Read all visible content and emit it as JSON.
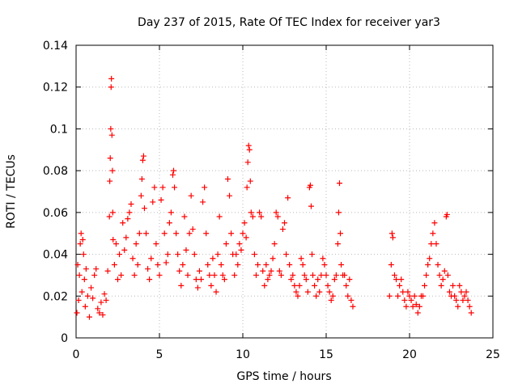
{
  "chart_data": {
    "type": "scatter",
    "title": "Day 237 of 2015, Rate Of TEC Index for receiver yar3",
    "xlabel": "GPS time / hours",
    "ylabel": "ROTI / TECUs",
    "xlim": [
      0,
      25
    ],
    "ylim": [
      0,
      0.14
    ],
    "x_ticks": [
      0,
      5,
      10,
      15,
      20,
      25
    ],
    "y_ticks": [
      0,
      0.02,
      0.04,
      0.06,
      0.08,
      0.1,
      0.12,
      0.14
    ],
    "x_tick_labels": [
      "0",
      "5",
      "10",
      "15",
      "20",
      "25"
    ],
    "y_tick_labels": [
      "0",
      "0.02",
      "0.04",
      "0.06",
      "0.08",
      "0.1",
      "0.12",
      "0.14"
    ],
    "grid": true,
    "marker": "+",
    "series": [
      {
        "name": "ROTI",
        "color": "#ff0000",
        "points": [
          [
            0.05,
            0.012
          ],
          [
            0.1,
            0.035
          ],
          [
            0.15,
            0.018
          ],
          [
            0.2,
            0.03
          ],
          [
            0.25,
            0.045
          ],
          [
            0.3,
            0.05
          ],
          [
            0.35,
            0.022
          ],
          [
            0.4,
            0.047
          ],
          [
            0.45,
            0.04
          ],
          [
            0.5,
            0.028
          ],
          [
            0.55,
            0.015
          ],
          [
            0.6,
            0.033
          ],
          [
            0.7,
            0.02
          ],
          [
            0.8,
            0.01
          ],
          [
            0.9,
            0.024
          ],
          [
            1.0,
            0.019
          ],
          [
            1.1,
            0.03
          ],
          [
            1.2,
            0.033
          ],
          [
            1.3,
            0.014
          ],
          [
            1.4,
            0.012
          ],
          [
            1.5,
            0.017
          ],
          [
            1.6,
            0.011
          ],
          [
            1.7,
            0.021
          ],
          [
            1.8,
            0.018
          ],
          [
            1.9,
            0.032
          ],
          [
            2.0,
            0.058
          ],
          [
            2.02,
            0.075
          ],
          [
            2.05,
            0.086
          ],
          [
            2.08,
            0.1
          ],
          [
            2.1,
            0.12
          ],
          [
            2.12,
            0.124
          ],
          [
            2.15,
            0.097
          ],
          [
            2.18,
            0.08
          ],
          [
            2.2,
            0.06
          ],
          [
            2.22,
            0.047
          ],
          [
            2.3,
            0.035
          ],
          [
            2.4,
            0.045
          ],
          [
            2.5,
            0.028
          ],
          [
            2.6,
            0.04
          ],
          [
            2.7,
            0.03
          ],
          [
            2.8,
            0.055
          ],
          [
            2.9,
            0.042
          ],
          [
            3.0,
            0.048
          ],
          [
            3.1,
            0.057
          ],
          [
            3.2,
            0.06
          ],
          [
            3.3,
            0.064
          ],
          [
            3.4,
            0.038
          ],
          [
            3.5,
            0.03
          ],
          [
            3.6,
            0.045
          ],
          [
            3.7,
            0.035
          ],
          [
            3.8,
            0.05
          ],
          [
            3.9,
            0.068
          ],
          [
            3.95,
            0.076
          ],
          [
            4.0,
            0.085
          ],
          [
            4.05,
            0.087
          ],
          [
            4.1,
            0.062
          ],
          [
            4.2,
            0.05
          ],
          [
            4.3,
            0.033
          ],
          [
            4.4,
            0.028
          ],
          [
            4.5,
            0.038
          ],
          [
            4.6,
            0.065
          ],
          [
            4.7,
            0.072
          ],
          [
            4.8,
            0.045
          ],
          [
            4.9,
            0.035
          ],
          [
            5.0,
            0.03
          ],
          [
            5.1,
            0.066
          ],
          [
            5.2,
            0.072
          ],
          [
            5.3,
            0.05
          ],
          [
            5.4,
            0.036
          ],
          [
            5.5,
            0.04
          ],
          [
            5.6,
            0.055
          ],
          [
            5.7,
            0.06
          ],
          [
            5.8,
            0.078
          ],
          [
            5.85,
            0.08
          ],
          [
            5.9,
            0.072
          ],
          [
            6.0,
            0.05
          ],
          [
            6.1,
            0.04
          ],
          [
            6.2,
            0.032
          ],
          [
            6.3,
            0.025
          ],
          [
            6.4,
            0.035
          ],
          [
            6.5,
            0.058
          ],
          [
            6.6,
            0.042
          ],
          [
            6.7,
            0.03
          ],
          [
            6.8,
            0.05
          ],
          [
            6.9,
            0.068
          ],
          [
            7.0,
            0.052
          ],
          [
            7.1,
            0.04
          ],
          [
            7.2,
            0.028
          ],
          [
            7.3,
            0.024
          ],
          [
            7.4,
            0.032
          ],
          [
            7.5,
            0.028
          ],
          [
            7.6,
            0.065
          ],
          [
            7.7,
            0.072
          ],
          [
            7.8,
            0.05
          ],
          [
            7.9,
            0.035
          ],
          [
            8.0,
            0.03
          ],
          [
            8.1,
            0.025
          ],
          [
            8.2,
            0.038
          ],
          [
            8.3,
            0.03
          ],
          [
            8.4,
            0.022
          ],
          [
            8.5,
            0.04
          ],
          [
            8.6,
            0.058
          ],
          [
            8.7,
            0.035
          ],
          [
            8.8,
            0.03
          ],
          [
            8.9,
            0.028
          ],
          [
            9.0,
            0.045
          ],
          [
            9.1,
            0.076
          ],
          [
            9.2,
            0.068
          ],
          [
            9.3,
            0.05
          ],
          [
            9.4,
            0.04
          ],
          [
            9.5,
            0.03
          ],
          [
            9.6,
            0.04
          ],
          [
            9.7,
            0.035
          ],
          [
            9.8,
            0.045
          ],
          [
            9.9,
            0.042
          ],
          [
            10.0,
            0.05
          ],
          [
            10.1,
            0.055
          ],
          [
            10.2,
            0.048
          ],
          [
            10.25,
            0.072
          ],
          [
            10.3,
            0.084
          ],
          [
            10.35,
            0.092
          ],
          [
            10.4,
            0.09
          ],
          [
            10.45,
            0.075
          ],
          [
            10.5,
            0.06
          ],
          [
            10.6,
            0.058
          ],
          [
            10.7,
            0.04
          ],
          [
            10.8,
            0.03
          ],
          [
            10.9,
            0.035
          ],
          [
            11.0,
            0.06
          ],
          [
            11.1,
            0.058
          ],
          [
            11.2,
            0.032
          ],
          [
            11.3,
            0.025
          ],
          [
            11.4,
            0.035
          ],
          [
            11.5,
            0.028
          ],
          [
            11.6,
            0.03
          ],
          [
            11.7,
            0.032
          ],
          [
            11.8,
            0.038
          ],
          [
            11.9,
            0.045
          ],
          [
            12.0,
            0.06
          ],
          [
            12.1,
            0.058
          ],
          [
            12.2,
            0.032
          ],
          [
            12.3,
            0.03
          ],
          [
            12.4,
            0.052
          ],
          [
            12.5,
            0.055
          ],
          [
            12.6,
            0.04
          ],
          [
            12.7,
            0.067
          ],
          [
            12.8,
            0.035
          ],
          [
            12.9,
            0.028
          ],
          [
            13.0,
            0.03
          ],
          [
            13.1,
            0.025
          ],
          [
            13.2,
            0.022
          ],
          [
            13.3,
            0.02
          ],
          [
            13.4,
            0.025
          ],
          [
            13.5,
            0.038
          ],
          [
            13.6,
            0.035
          ],
          [
            13.7,
            0.03
          ],
          [
            13.8,
            0.028
          ],
          [
            13.9,
            0.022
          ],
          [
            14.0,
            0.072
          ],
          [
            14.05,
            0.073
          ],
          [
            14.1,
            0.063
          ],
          [
            14.15,
            0.04
          ],
          [
            14.2,
            0.03
          ],
          [
            14.3,
            0.025
          ],
          [
            14.4,
            0.02
          ],
          [
            14.5,
            0.028
          ],
          [
            14.6,
            0.022
          ],
          [
            14.7,
            0.03
          ],
          [
            14.8,
            0.038
          ],
          [
            14.9,
            0.035
          ],
          [
            15.0,
            0.03
          ],
          [
            15.1,
            0.025
          ],
          [
            15.2,
            0.022
          ],
          [
            15.3,
            0.018
          ],
          [
            15.4,
            0.02
          ],
          [
            15.5,
            0.028
          ],
          [
            15.6,
            0.03
          ],
          [
            15.7,
            0.045
          ],
          [
            15.75,
            0.06
          ],
          [
            15.8,
            0.074
          ],
          [
            15.85,
            0.05
          ],
          [
            15.9,
            0.035
          ],
          [
            16.0,
            0.03
          ],
          [
            16.1,
            0.03
          ],
          [
            16.2,
            0.025
          ],
          [
            16.3,
            0.02
          ],
          [
            16.4,
            0.028
          ],
          [
            16.5,
            0.018
          ],
          [
            16.6,
            0.015
          ],
          [
            18.8,
            0.02
          ],
          [
            18.9,
            0.035
          ],
          [
            18.95,
            0.05
          ],
          [
            19.0,
            0.048
          ],
          [
            19.1,
            0.03
          ],
          [
            19.2,
            0.028
          ],
          [
            19.3,
            0.02
          ],
          [
            19.4,
            0.025
          ],
          [
            19.5,
            0.028
          ],
          [
            19.6,
            0.022
          ],
          [
            19.7,
            0.018
          ],
          [
            19.8,
            0.015
          ],
          [
            19.9,
            0.022
          ],
          [
            20.0,
            0.02
          ],
          [
            20.1,
            0.018
          ],
          [
            20.2,
            0.015
          ],
          [
            20.3,
            0.02
          ],
          [
            20.4,
            0.016
          ],
          [
            20.5,
            0.012
          ],
          [
            20.6,
            0.015
          ],
          [
            20.7,
            0.02
          ],
          [
            20.8,
            0.02
          ],
          [
            20.9,
            0.025
          ],
          [
            21.0,
            0.03
          ],
          [
            21.1,
            0.035
          ],
          [
            21.2,
            0.038
          ],
          [
            21.3,
            0.045
          ],
          [
            21.4,
            0.05
          ],
          [
            21.5,
            0.055
          ],
          [
            21.6,
            0.045
          ],
          [
            21.7,
            0.035
          ],
          [
            21.8,
            0.03
          ],
          [
            21.9,
            0.025
          ],
          [
            22.0,
            0.028
          ],
          [
            22.1,
            0.032
          ],
          [
            22.2,
            0.058
          ],
          [
            22.25,
            0.059
          ],
          [
            22.3,
            0.03
          ],
          [
            22.4,
            0.022
          ],
          [
            22.5,
            0.02
          ],
          [
            22.6,
            0.025
          ],
          [
            22.7,
            0.02
          ],
          [
            22.8,
            0.018
          ],
          [
            22.9,
            0.015
          ],
          [
            23.0,
            0.025
          ],
          [
            23.1,
            0.022
          ],
          [
            23.2,
            0.018
          ],
          [
            23.3,
            0.02
          ],
          [
            23.4,
            0.022
          ],
          [
            23.5,
            0.018
          ],
          [
            23.6,
            0.015
          ],
          [
            23.7,
            0.012
          ]
        ]
      }
    ]
  }
}
